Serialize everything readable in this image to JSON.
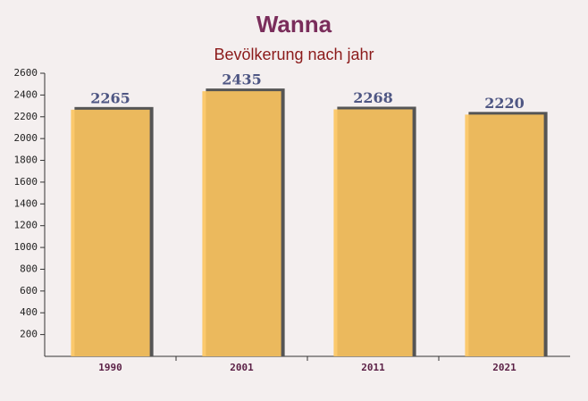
{
  "chart_data": {
    "type": "bar",
    "title": "Wanna",
    "subtitle": "Bevölkerung nach jahr",
    "categories": [
      "1990",
      "2001",
      "2011",
      "2021"
    ],
    "values": [
      2265,
      2435,
      2268,
      2220
    ],
    "color": "#fcc45e",
    "ylim": [
      0,
      2600
    ],
    "yticks": [
      200,
      400,
      600,
      800,
      1000,
      1200,
      1400,
      1600,
      1800,
      2000,
      2200,
      2400,
      2600
    ]
  }
}
